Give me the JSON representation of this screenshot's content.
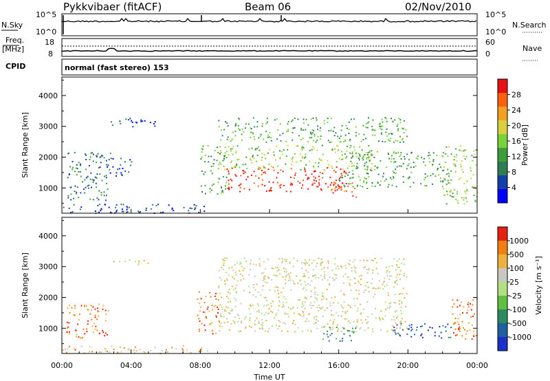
{
  "header": {
    "station": "Pykkvibaer (fitACF)",
    "beam": "Beam 06",
    "date": "02/Nov/2010"
  },
  "strips": {
    "nsky_label": "N.Sky",
    "nsky_ticks": [
      "10^5",
      "10^0"
    ],
    "nsearch_label": "N.Search",
    "nsearch_ticks": [
      "10^5",
      "10^0"
    ],
    "freq_label_1": "Freq.",
    "freq_label_2": "[MHz]",
    "freq_ticks": [
      "18",
      "8"
    ],
    "nave_label": "Nave",
    "nave_ticks": [
      "60",
      "0"
    ],
    "cpid_label": "CPID",
    "cpid_text": "normal (fast stereo) 153"
  },
  "axes": {
    "xlabel": "Time UT",
    "xticks": [
      "00:00",
      "04:00",
      "08:00",
      "12:00",
      "16:00",
      "20:00",
      "00:00"
    ],
    "ylabel": "Slant Range [km]",
    "yticks": [
      "1000",
      "2000",
      "3000",
      "4000"
    ]
  },
  "colorbars": {
    "power": {
      "label": "Power [dB]",
      "ticks": [
        "4",
        "8",
        "12",
        "16",
        "20",
        "24",
        "28"
      ],
      "colors": [
        "#0000ff",
        "#1040a8",
        "#2f7d55",
        "#3c9f3c",
        "#79d23a",
        "#d8d040",
        "#f5a020",
        "#ff6010",
        "#e81010"
      ]
    },
    "velocity": {
      "label": "Velocity [m s⁻¹]",
      "ticks": [
        "1000",
        "500",
        "100",
        "25",
        "-25",
        "-100",
        "-500",
        "-1000"
      ],
      "colors": [
        "#1a30c8",
        "#2060a0",
        "#2c8a60",
        "#60c040",
        "#b0e080",
        "#c8c8c0",
        "#f0b040",
        "#f08010",
        "#e82010"
      ]
    }
  },
  "chart_data": [
    {
      "type": "line",
      "name": "nsky-nsearch",
      "x": [
        "00:00",
        "04:00",
        "08:00",
        "12:00",
        "16:00",
        "20:00",
        "00:00"
      ],
      "ylim": [
        0,
        100000
      ],
      "log_scale": true,
      "note_values": []
    },
    {
      "type": "line",
      "name": "freq-nave",
      "ylim_left": [
        8,
        18
      ],
      "ylim_right": [
        0,
        60
      ]
    },
    {
      "type": "heatmap",
      "name": "power",
      "xlim_hours": [
        0,
        24
      ],
      "ylim_km": [
        180,
        4600
      ],
      "colorbar_range_db": [
        0,
        30
      ],
      "regions": [
        {
          "t0": 0.3,
          "t1": 2.8,
          "r0": 600,
          "r1": 2200,
          "level": 2
        },
        {
          "t0": 2.5,
          "t1": 4.0,
          "r0": 1400,
          "r1": 2000,
          "level": 1
        },
        {
          "t0": 2.8,
          "t1": 5.5,
          "r0": 3000,
          "r1": 3300,
          "level": 1
        },
        {
          "t0": 0.0,
          "t1": 8.5,
          "r0": 200,
          "r1": 500,
          "level": 1
        },
        {
          "t0": 8.0,
          "t1": 9.5,
          "r0": 800,
          "r1": 2400,
          "level": 3
        },
        {
          "t0": 9.5,
          "t1": 16.5,
          "r0": 900,
          "r1": 1700,
          "level": 8
        },
        {
          "t0": 9.0,
          "t1": 18.0,
          "r0": 1600,
          "r1": 2400,
          "level": 4
        },
        {
          "t0": 9.0,
          "t1": 20.0,
          "r0": 2500,
          "r1": 3300,
          "level": 3
        },
        {
          "t0": 16.0,
          "t1": 22.0,
          "r0": 1000,
          "r1": 2200,
          "level": 3
        },
        {
          "t0": 15.5,
          "t1": 17.0,
          "r0": 700,
          "r1": 1200,
          "level": 7
        },
        {
          "t0": 22.0,
          "t1": 24.0,
          "r0": 500,
          "r1": 2400,
          "level": 4
        }
      ]
    },
    {
      "type": "heatmap",
      "name": "velocity",
      "xlim_hours": [
        0,
        24
      ],
      "ylim_km": [
        180,
        4600
      ],
      "colorbar_range": [
        -1000,
        1000
      ],
      "regions": [
        {
          "t0": 0.2,
          "t1": 2.8,
          "r0": 700,
          "r1": 1800,
          "level": 7
        },
        {
          "t0": 2.8,
          "t1": 5.0,
          "r0": 3100,
          "r1": 3300,
          "level": 5
        },
        {
          "t0": 0.0,
          "t1": 8.5,
          "r0": 200,
          "r1": 450,
          "level": 6
        },
        {
          "t0": 7.8,
          "t1": 9.2,
          "r0": 800,
          "r1": 2200,
          "level": 7
        },
        {
          "t0": 9.0,
          "t1": 20.0,
          "r0": 900,
          "r1": 3300,
          "level": 5
        },
        {
          "t0": 15.0,
          "t1": 17.0,
          "r0": 600,
          "r1": 1100,
          "level": 2
        },
        {
          "t0": 19.0,
          "t1": 22.5,
          "r0": 700,
          "r1": 1200,
          "level": 1
        },
        {
          "t0": 22.5,
          "t1": 24.0,
          "r0": 600,
          "r1": 2000,
          "level": 7
        }
      ]
    }
  ]
}
